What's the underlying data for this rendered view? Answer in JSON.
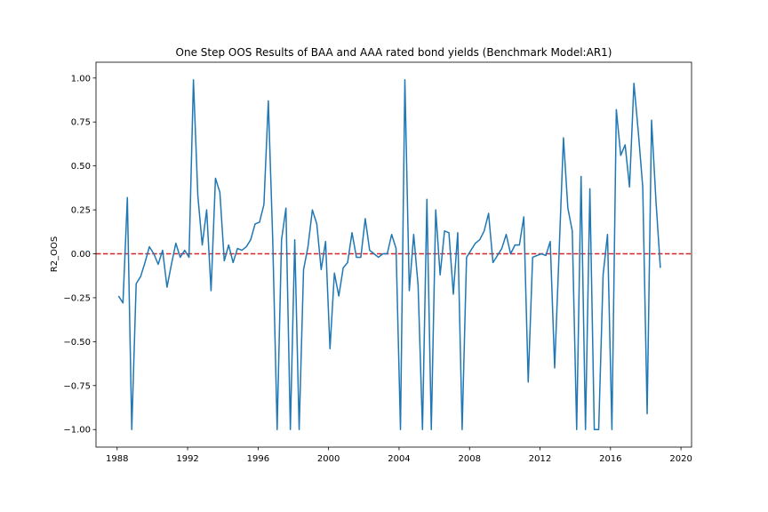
{
  "chart_data": {
    "type": "line",
    "title": "One Step OOS Results of BAA and AAA rated bond yields (Benchmark Model:AR1)",
    "xlabel": "",
    "ylabel": "R2_OOS",
    "xlim": [
      1986.8,
      2020.6
    ],
    "ylim": [
      -1.1,
      1.09
    ],
    "xticks": [
      1988,
      1992,
      1996,
      2000,
      2004,
      2008,
      2012,
      2016,
      2020
    ],
    "xtick_labels": [
      "1988",
      "1992",
      "1996",
      "2000",
      "2004",
      "2008",
      "2012",
      "2016",
      "2020"
    ],
    "yticks": [
      -1.0,
      -0.75,
      -0.5,
      -0.25,
      0.0,
      0.25,
      0.5,
      0.75,
      1.0
    ],
    "ytick_labels": [
      "−1.00",
      "−0.75",
      "−0.50",
      "−0.25",
      "0.00",
      "0.25",
      "0.50",
      "0.75",
      "1.00"
    ],
    "reference_line": {
      "y": 0.0,
      "style": "dashed",
      "color": "#d62728"
    },
    "series": [
      {
        "color": "#1f77b4",
        "x": [
          1988.08,
          1988.33,
          1988.58,
          1988.83,
          1989.08,
          1989.33,
          1989.58,
          1989.83,
          1990.08,
          1990.33,
          1990.58,
          1990.83,
          1991.08,
          1991.33,
          1991.58,
          1991.83,
          1992.08,
          1992.33,
          1992.58,
          1992.83,
          1993.08,
          1993.33,
          1993.58,
          1993.83,
          1994.08,
          1994.33,
          1994.58,
          1994.83,
          1995.08,
          1995.33,
          1995.58,
          1995.83,
          1996.08,
          1996.33,
          1996.58,
          1996.83,
          1997.08,
          1997.33,
          1997.58,
          1997.83,
          1998.08,
          1998.33,
          1998.58,
          1998.83,
          1999.08,
          1999.33,
          1999.58,
          1999.83,
          2000.08,
          2000.33,
          2000.58,
          2000.83,
          2001.08,
          2001.33,
          2001.58,
          2001.83,
          2002.08,
          2002.33,
          2002.58,
          2002.83,
          2003.08,
          2003.33,
          2003.58,
          2003.83,
          2004.08,
          2004.33,
          2004.58,
          2004.83,
          2005.08,
          2005.33,
          2005.58,
          2005.83,
          2006.08,
          2006.33,
          2006.58,
          2006.83,
          2007.08,
          2007.33,
          2007.58,
          2007.83,
          2008.08,
          2008.33,
          2008.58,
          2008.83,
          2009.08,
          2009.33,
          2009.58,
          2009.83,
          2010.08,
          2010.33,
          2010.58,
          2010.83,
          2011.08,
          2011.33,
          2011.58,
          2011.83,
          2012.08,
          2012.33,
          2012.58,
          2012.83,
          2013.08,
          2013.33,
          2013.58,
          2013.83,
          2014.08,
          2014.33,
          2014.58,
          2014.83,
          2015.08,
          2015.33,
          2015.58,
          2015.83,
          2016.08,
          2016.33,
          2016.58,
          2016.83,
          2017.08,
          2017.33,
          2017.58,
          2017.83,
          2018.08,
          2018.33,
          2018.58,
          2018.83
        ],
        "y": [
          -0.24,
          -0.28,
          0.32,
          -1.0,
          -0.17,
          -0.13,
          -0.05,
          0.04,
          0.0,
          -0.06,
          0.02,
          -0.19,
          -0.06,
          0.06,
          -0.02,
          0.02,
          -0.02,
          0.99,
          0.33,
          0.05,
          0.25,
          -0.21,
          0.43,
          0.35,
          -0.04,
          0.05,
          -0.05,
          0.03,
          0.02,
          0.04,
          0.08,
          0.17,
          0.18,
          0.28,
          0.87,
          0.08,
          -1.0,
          0.08,
          0.26,
          -1.0,
          0.08,
          -1.0,
          -0.09,
          0.04,
          0.25,
          0.17,
          -0.09,
          0.07,
          -0.54,
          -0.11,
          -0.24,
          -0.08,
          -0.05,
          0.12,
          -0.02,
          -0.02,
          0.2,
          0.02,
          0.0,
          -0.02,
          0.0,
          0.0,
          0.11,
          0.03,
          -1.0,
          0.99,
          -0.21,
          0.11,
          -0.18,
          -1.0,
          0.31,
          -1.0,
          0.25,
          -0.12,
          0.13,
          0.12,
          -0.23,
          0.12,
          -1.0,
          -0.02,
          0.02,
          0.06,
          0.08,
          0.13,
          0.23,
          -0.05,
          -0.01,
          0.03,
          0.11,
          0.0,
          0.05,
          0.05,
          0.21,
          -0.73,
          -0.02,
          -0.01,
          0.0,
          -0.01,
          0.07,
          -0.65,
          0.0,
          0.66,
          0.26,
          0.13,
          -1.0,
          0.44,
          -1.0,
          0.37,
          -1.0,
          -1.0,
          -0.12,
          0.11,
          -1.0,
          0.82,
          0.56,
          0.62,
          0.38,
          0.97,
          0.69,
          0.38,
          -0.91,
          0.76,
          0.3,
          -0.08
        ]
      }
    ]
  }
}
